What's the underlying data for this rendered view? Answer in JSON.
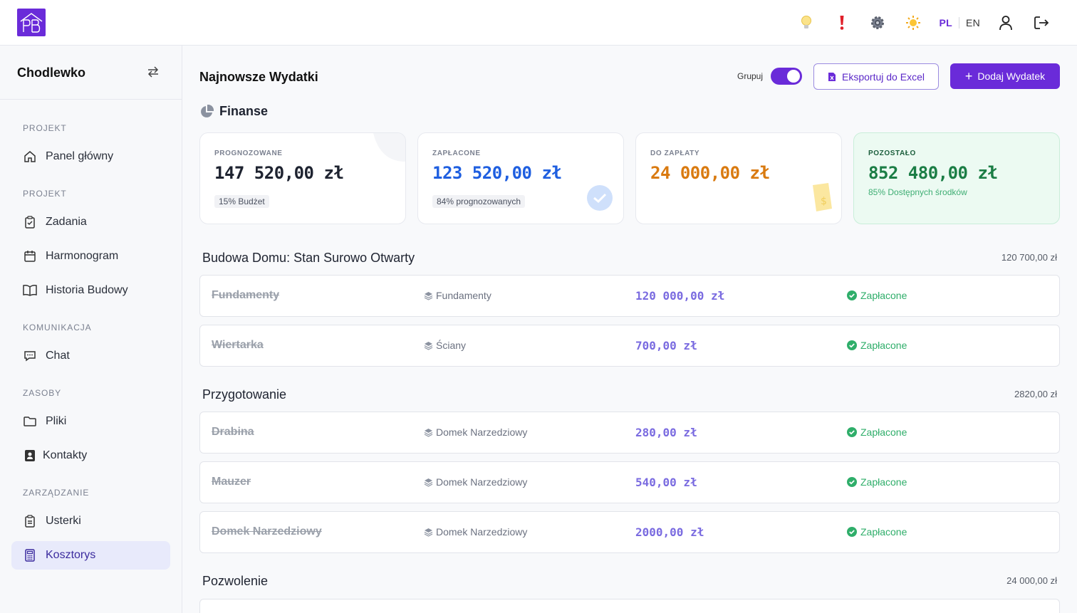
{
  "header": {
    "logo_text": "PB",
    "lang_pl": "PL",
    "lang_en": "EN",
    "icons": [
      "lightbulb-icon",
      "alert-icon",
      "gear-icon",
      "sun-icon",
      "user-icon",
      "logout-icon"
    ]
  },
  "sidebar": {
    "project_name": "Chodlewko",
    "sections": {
      "s1": "PROJEKT",
      "s2": "PROJEKT",
      "s3": "KOMUNIKACJA",
      "s4": "ZASOBY",
      "s5": "ZARZĄDZANIE"
    },
    "items": {
      "dashboard": "Panel główny",
      "tasks": "Zadania",
      "schedule": "Harmonogram",
      "history": "Historia Budowy",
      "chat": "Chat",
      "files": "Pliki",
      "contacts": "Kontakty",
      "defects": "Usterki",
      "estimate": "Kosztorys"
    }
  },
  "main": {
    "title": "Najnowsze Wydatki",
    "group_label": "Grupuj",
    "group_on": true,
    "export_label": "Eksportuj do Excel",
    "add_label": "Dodaj Wydatek",
    "finance_title": "Finanse"
  },
  "cards": {
    "forecast": {
      "label": "PROGNOZOWANE",
      "value": "147 520,00 zł",
      "tag": "15% Budżet"
    },
    "paid": {
      "label": "ZAPŁACONE",
      "value": "123 520,00 zł",
      "tag": "84% prognozowanych"
    },
    "due": {
      "label": "DO ZAPŁATY",
      "value": "24 000,00 zł"
    },
    "remaining": {
      "label": "POZOSTAŁO",
      "value": "852 480,00 zł",
      "note": "85% Dostępnych środków"
    }
  },
  "groups": {
    "g1": {
      "name": "Budowa Domu: Stan Surowo Otwarty",
      "total": "120 700,00 zł"
    },
    "g2": {
      "name": "Przygotowanie",
      "total": "2820,00 zł"
    },
    "g3": {
      "name": "Pozwolenie",
      "total": "24 000,00 zł"
    }
  },
  "rows": {
    "r1": {
      "name": "Fundamenty",
      "category": "Fundamenty",
      "amount": "120 000,00 zł",
      "status": "Zapłacone"
    },
    "r2": {
      "name": "Wiertarka",
      "category": "Ściany",
      "amount": "700,00 zł",
      "status": "Zapłacone"
    },
    "r3": {
      "name": "Drabina",
      "category": "Domek Narzedziowy",
      "amount": "280,00 zł",
      "status": "Zapłacone"
    },
    "r4": {
      "name": "Mauzer",
      "category": "Domek Narzedziowy",
      "amount": "540,00 zł",
      "status": "Zapłacone"
    },
    "r5": {
      "name": "Domek Narzedziowy",
      "category": "Domek Narzedziowy",
      "amount": "2000,00 zł",
      "status": "Zapłacone"
    }
  },
  "colors": {
    "accent": "#6a2bd9",
    "paid_blue": "#1f5fe0",
    "due_orange": "#d97a10",
    "remaining_green": "#1b7d45",
    "status_green": "#2fae6a"
  }
}
